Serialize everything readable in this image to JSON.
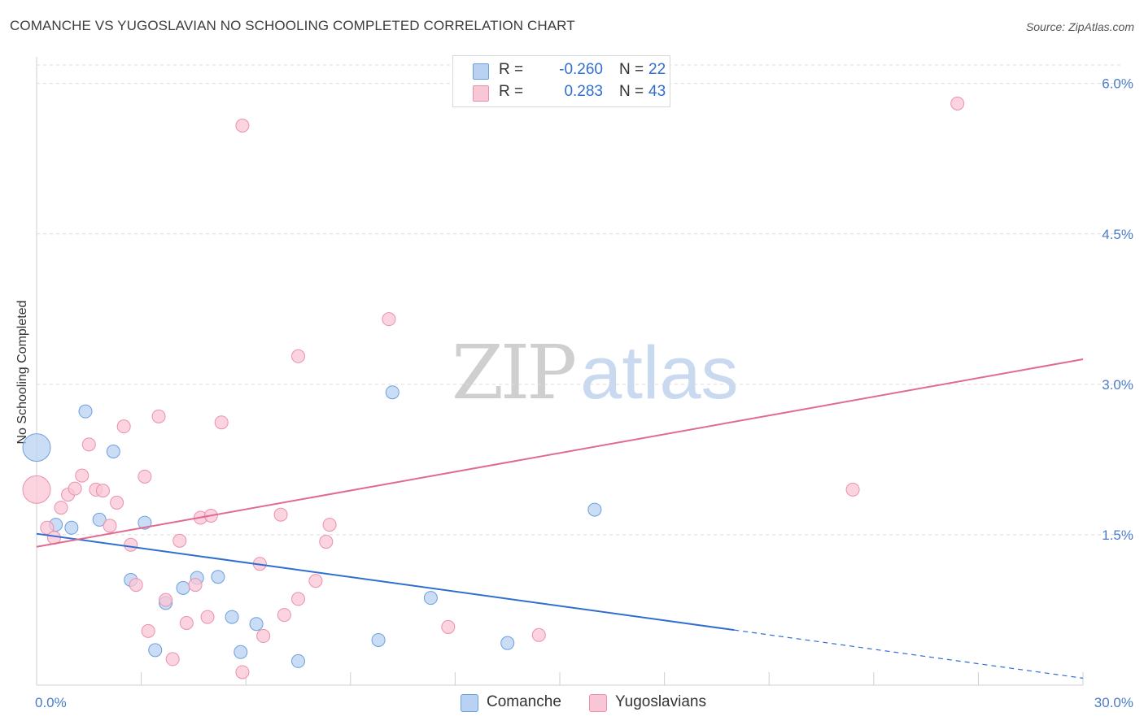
{
  "title": "COMANCHE VS YUGOSLAVIAN NO SCHOOLING COMPLETED CORRELATION CHART",
  "source": "Source: ZipAtlas.com",
  "watermark": {
    "zip": "ZIP",
    "atlas": "atlas"
  },
  "legend": {
    "r_label": "R =",
    "n_label": "N =",
    "comanche": {
      "name": "Comanche",
      "r": "-0.260",
      "n": "22",
      "fill": "#b9d2f2",
      "stroke": "#6b9ee0"
    },
    "yugoslavian": {
      "name": "Yugoslavians",
      "r": "0.283",
      "n": "43",
      "fill": "#f9c6d5",
      "stroke": "#ea90ae"
    }
  },
  "chart_data": {
    "type": "scatter",
    "title": "COMANCHE VS YUGOSLAVIAN NO SCHOOLING COMPLETED CORRELATION CHART",
    "xlabel": "",
    "ylabel": "No Schooling Completed",
    "xlim": [
      0,
      30
    ],
    "ylim": [
      0,
      6.2
    ],
    "y_ticks": [
      1.5,
      3.0,
      4.5,
      6.0
    ],
    "y_tick_labels": [
      "1.5%",
      "3.0%",
      "4.5%",
      "6.0%"
    ],
    "x_tick_labels": [
      "0.0%",
      "30.0%"
    ],
    "grid": true,
    "legend_position": "top-center",
    "series": [
      {
        "name": "Comanche",
        "color": "#6b9ee0",
        "points": [
          {
            "x": 0.0,
            "y": 2.37,
            "size": "large"
          },
          {
            "x": 0.55,
            "y": 1.6
          },
          {
            "x": 1.0,
            "y": 1.57
          },
          {
            "x": 1.4,
            "y": 2.73
          },
          {
            "x": 1.8,
            "y": 1.65
          },
          {
            "x": 2.2,
            "y": 2.33
          },
          {
            "x": 2.7,
            "y": 1.05
          },
          {
            "x": 3.1,
            "y": 1.62
          },
          {
            "x": 3.4,
            "y": 0.35
          },
          {
            "x": 3.7,
            "y": 0.82
          },
          {
            "x": 4.2,
            "y": 0.97
          },
          {
            "x": 4.6,
            "y": 1.07
          },
          {
            "x": 5.2,
            "y": 1.08
          },
          {
            "x": 5.6,
            "y": 0.68
          },
          {
            "x": 5.85,
            "y": 0.33
          },
          {
            "x": 6.3,
            "y": 0.61
          },
          {
            "x": 7.5,
            "y": 0.24
          },
          {
            "x": 9.8,
            "y": 0.45
          },
          {
            "x": 10.2,
            "y": 2.92
          },
          {
            "x": 11.3,
            "y": 0.87
          },
          {
            "x": 13.5,
            "y": 0.42
          },
          {
            "x": 16.0,
            "y": 1.75
          }
        ],
        "trend": {
          "x0": 0,
          "y0": 1.51,
          "x1": 20.0,
          "y1": 0.55,
          "dashed_to_x": 30,
          "dashed_to_y": 0.07
        }
      },
      {
        "name": "Yugoslavians",
        "color": "#ea90ae",
        "points": [
          {
            "x": 0.0,
            "y": 1.95,
            "size": "large"
          },
          {
            "x": 0.3,
            "y": 1.57
          },
          {
            "x": 0.5,
            "y": 1.47
          },
          {
            "x": 0.7,
            "y": 1.77
          },
          {
            "x": 0.9,
            "y": 1.9
          },
          {
            "x": 1.1,
            "y": 1.96
          },
          {
            "x": 1.3,
            "y": 2.09
          },
          {
            "x": 1.5,
            "y": 2.4
          },
          {
            "x": 1.7,
            "y": 1.95
          },
          {
            "x": 1.9,
            "y": 1.94
          },
          {
            "x": 2.1,
            "y": 1.59
          },
          {
            "x": 2.3,
            "y": 1.82
          },
          {
            "x": 2.5,
            "y": 2.58
          },
          {
            "x": 2.7,
            "y": 1.4
          },
          {
            "x": 2.85,
            "y": 1.0
          },
          {
            "x": 3.1,
            "y": 2.08
          },
          {
            "x": 3.2,
            "y": 0.54
          },
          {
            "x": 3.5,
            "y": 2.68
          },
          {
            "x": 3.7,
            "y": 0.85
          },
          {
            "x": 3.9,
            "y": 0.26
          },
          {
            "x": 4.1,
            "y": 1.44
          },
          {
            "x": 4.3,
            "y": 0.62
          },
          {
            "x": 4.55,
            "y": 1.0
          },
          {
            "x": 4.7,
            "y": 1.67
          },
          {
            "x": 4.9,
            "y": 0.68
          },
          {
            "x": 5.0,
            "y": 1.69
          },
          {
            "x": 5.3,
            "y": 2.62
          },
          {
            "x": 5.9,
            "y": 0.13
          },
          {
            "x": 5.9,
            "y": 5.58
          },
          {
            "x": 6.4,
            "y": 1.21
          },
          {
            "x": 6.5,
            "y": 0.49
          },
          {
            "x": 7.0,
            "y": 1.7
          },
          {
            "x": 7.1,
            "y": 0.7
          },
          {
            "x": 7.5,
            "y": 3.28
          },
          {
            "x": 7.5,
            "y": 0.86
          },
          {
            "x": 8.3,
            "y": 1.43
          },
          {
            "x": 8.4,
            "y": 1.6
          },
          {
            "x": 8.0,
            "y": 1.04
          },
          {
            "x": 10.1,
            "y": 3.65
          },
          {
            "x": 11.8,
            "y": 0.58
          },
          {
            "x": 14.4,
            "y": 0.5
          },
          {
            "x": 23.4,
            "y": 1.95
          },
          {
            "x": 26.4,
            "y": 5.8
          }
        ],
        "trend": {
          "x0": 0,
          "y0": 1.38,
          "x1": 30.0,
          "y1": 3.25
        }
      }
    ]
  }
}
